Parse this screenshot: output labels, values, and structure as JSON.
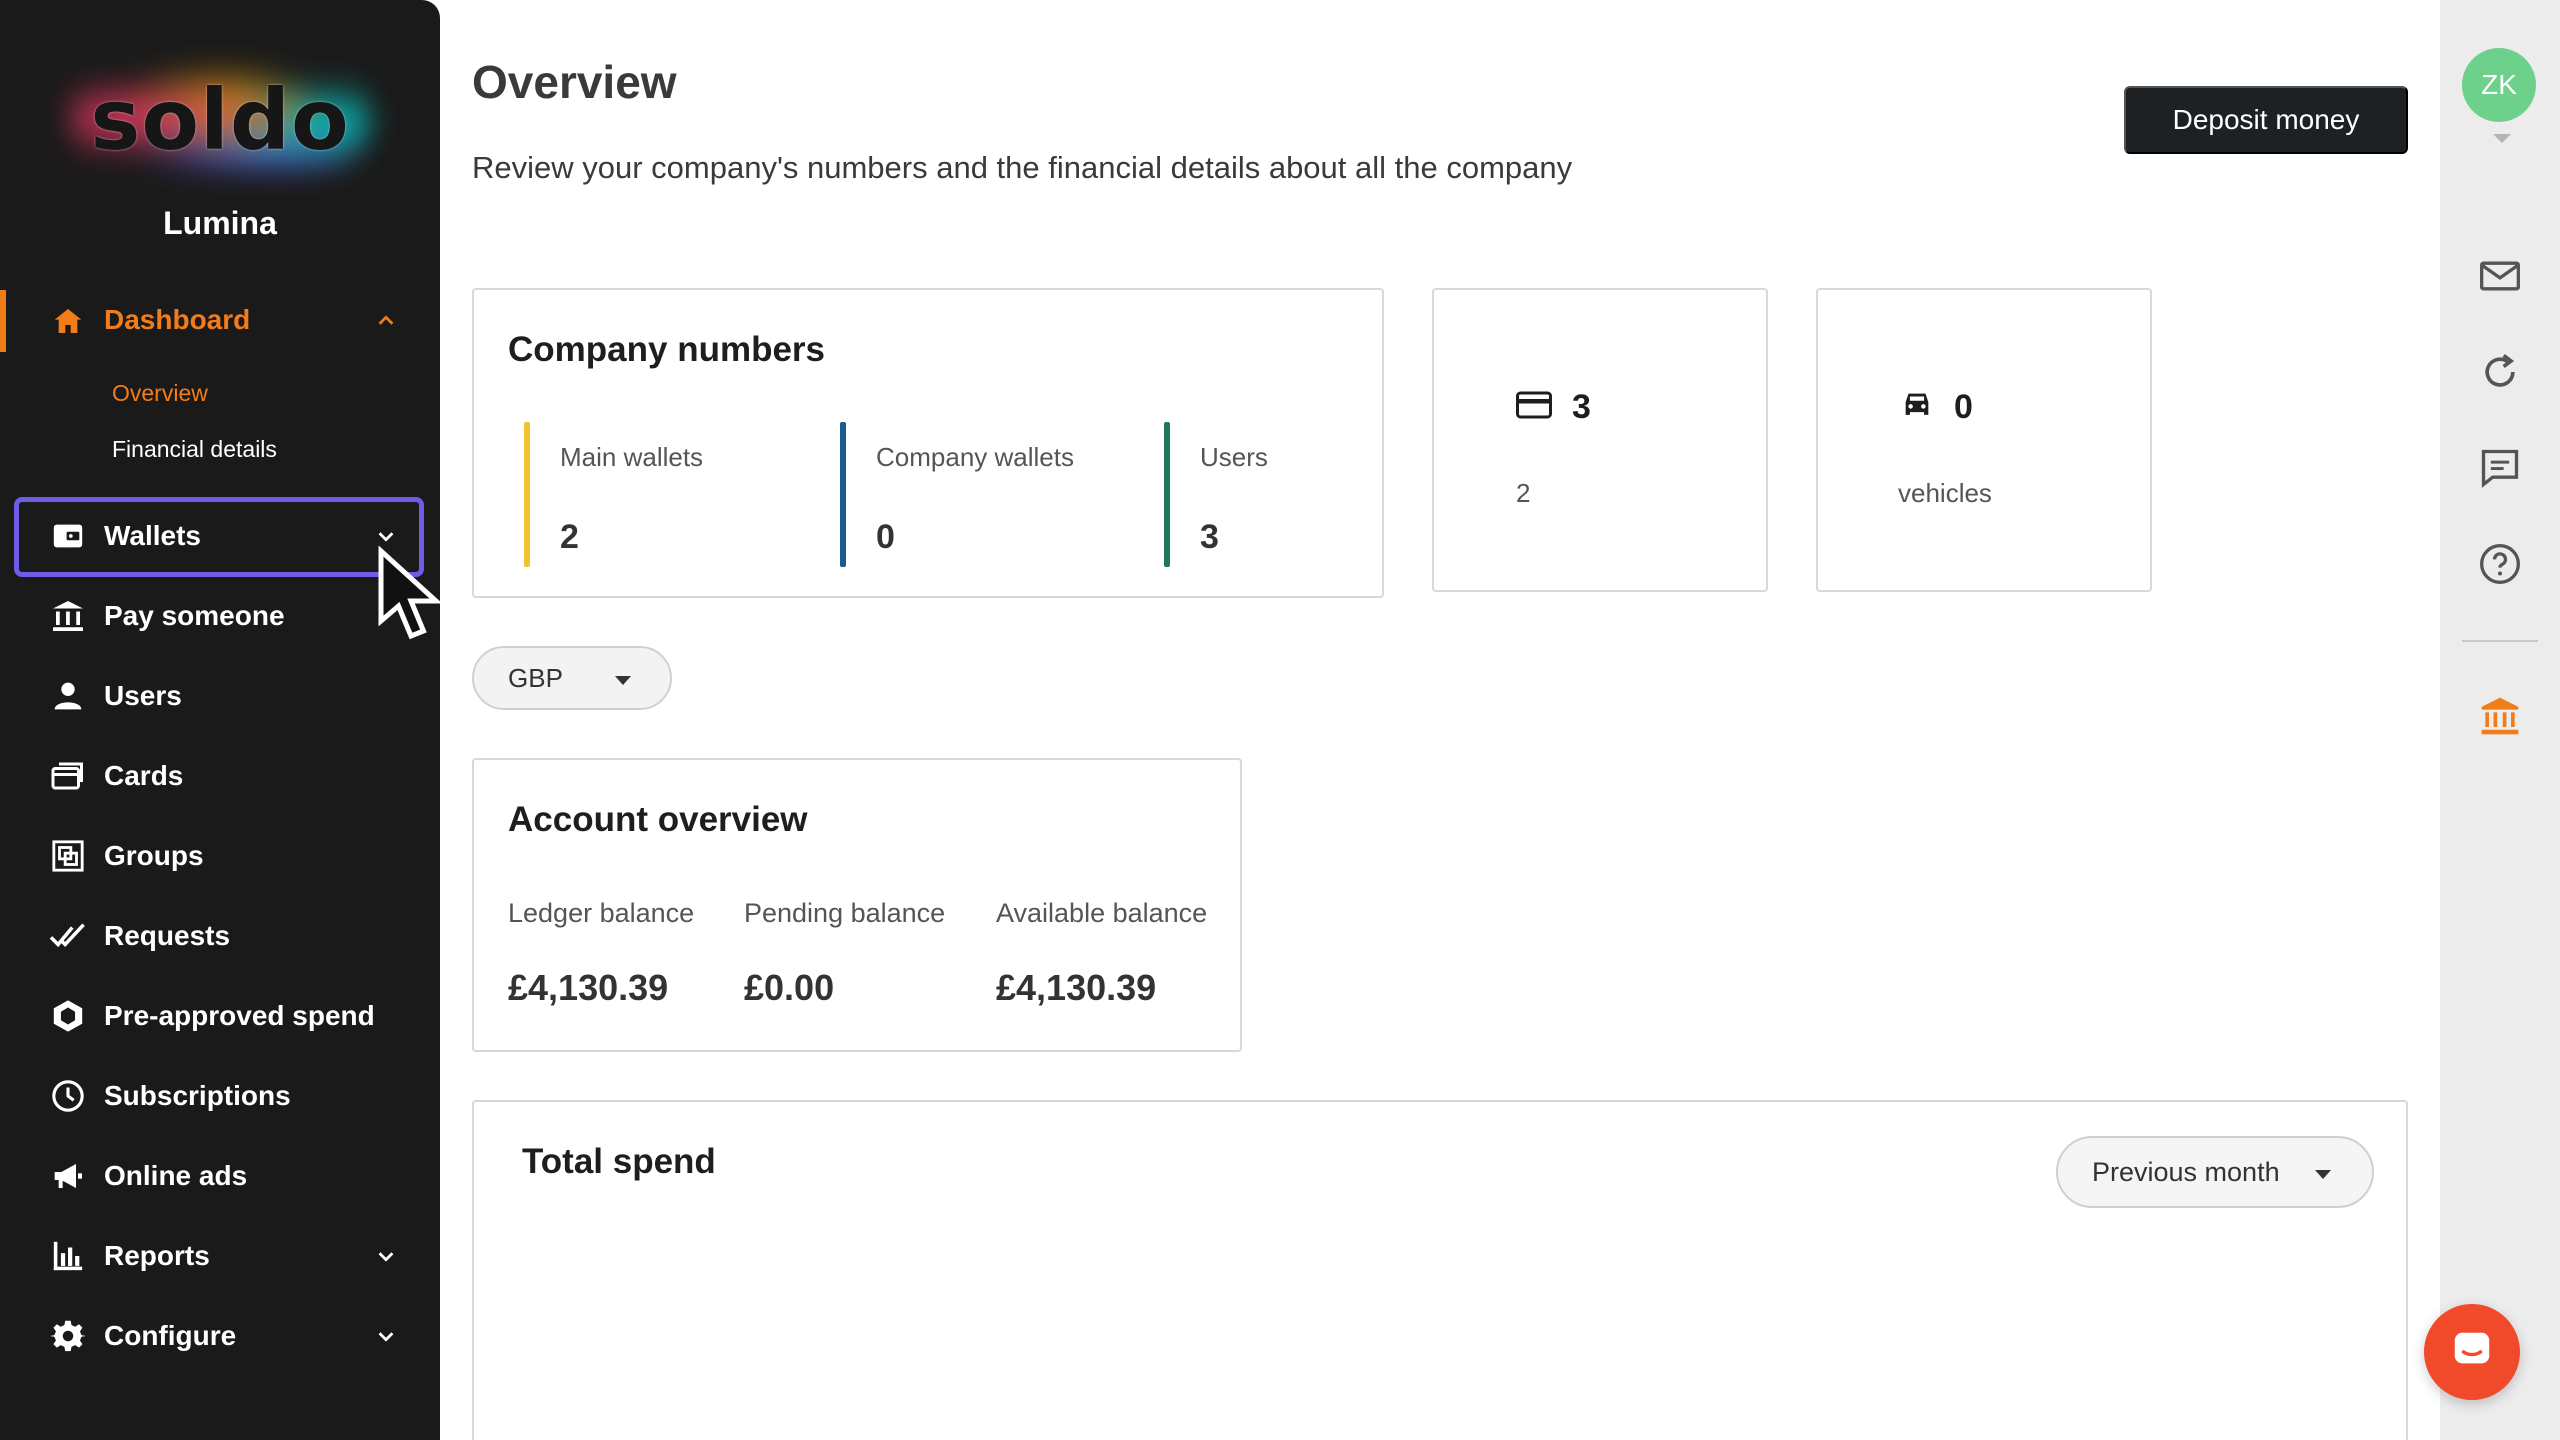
{
  "sidebar": {
    "logo": "soldo",
    "company": "Lumina",
    "dashboard": {
      "label": "Dashboard",
      "icon": "home-icon",
      "sub_items": [
        {
          "label": "Overview",
          "active": true
        },
        {
          "label": "Financial details",
          "active": false
        }
      ]
    },
    "items": [
      {
        "label": "Wallets",
        "icon": "wallet-icon"
      },
      {
        "label": "Pay someone",
        "icon": "bank-transfer-icon"
      },
      {
        "label": "Users",
        "icon": "user-icon"
      },
      {
        "label": "Cards",
        "icon": "cards-icon"
      },
      {
        "label": "Groups",
        "icon": "groups-icon"
      },
      {
        "label": "Requests",
        "icon": "double-check-icon"
      },
      {
        "label": "Pre-approved spend",
        "icon": "hexagon-icon"
      },
      {
        "label": "Subscriptions",
        "icon": "clock-icon"
      },
      {
        "label": "Online ads",
        "icon": "megaphone-icon"
      },
      {
        "label": "Reports",
        "icon": "bar-chart-icon"
      },
      {
        "label": "Configure",
        "icon": "gear-icon"
      }
    ]
  },
  "header": {
    "title": "Overview",
    "subtitle": "Review your company's numbers and the financial details about all the company",
    "deposit_label": "Deposit money"
  },
  "company_numbers": {
    "title": "Company numbers",
    "stats": [
      {
        "label": "Main wallets",
        "value": "2",
        "color": "#f2c230"
      },
      {
        "label": "Company wallets",
        "value": "0",
        "color": "#1d5a8c"
      },
      {
        "label": "Users",
        "value": "3",
        "color": "#1e7a5a"
      }
    ]
  },
  "cards_summary": {
    "icon": "credit-card-icon",
    "value": "3",
    "sub": "2"
  },
  "vehicles_summary": {
    "icon": "car-icon",
    "value": "0",
    "sub": "vehicles"
  },
  "currency": {
    "selected": "GBP"
  },
  "account_overview": {
    "title": "Account overview",
    "balances": [
      {
        "label": "Ledger balance",
        "value": "£4,130.39"
      },
      {
        "label": "Pending balance",
        "value": "£0.00"
      },
      {
        "label": "Available balance",
        "value": "£4,130.39"
      }
    ]
  },
  "total_spend": {
    "title": "Total spend",
    "period": "Previous month"
  },
  "rail": {
    "avatar": "ZK",
    "accent": "#f07d1a"
  },
  "colors": {
    "sidebar_bg": "#1a1a1a",
    "accent": "#f07d1a",
    "highlight": "#6c5ce7",
    "fab": "#f04a2b"
  }
}
